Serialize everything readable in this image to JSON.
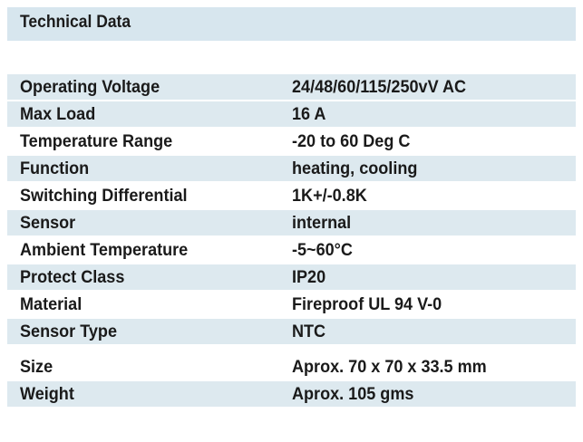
{
  "header": {
    "title": "Technical Data"
  },
  "rows": [
    {
      "label": "Operating Voltage",
      "value": "24/48/60/115/250vV AC"
    },
    {
      "label": "Max Load",
      "value": "16 A"
    },
    {
      "label": "Temperature Range",
      "value": "-20 to 60 Deg C"
    },
    {
      "label": "Function",
      "value": "heating, cooling"
    },
    {
      "label": "Switching Differential",
      "value": "1K+/-0.8K"
    },
    {
      "label": "Sensor",
      "value": "internal"
    },
    {
      "label": "Ambient Temperature",
      "value": "-5~60°C"
    },
    {
      "label": "Protect Class",
      "value": "IP20"
    },
    {
      "label": "Material",
      "value": "Fireproof UL 94 V-0"
    },
    {
      "label": "Sensor Type",
      "value": "NTC"
    },
    {
      "label": "Size",
      "value": "Aprox. 70 x 70 x 33.5 mm"
    },
    {
      "label": "Weight",
      "value": "Aprox. 105 gms"
    }
  ],
  "colors": {
    "header_bg": "#d7e6ee",
    "row_shade": "#dde9ef",
    "text": "#1a1a1a"
  }
}
